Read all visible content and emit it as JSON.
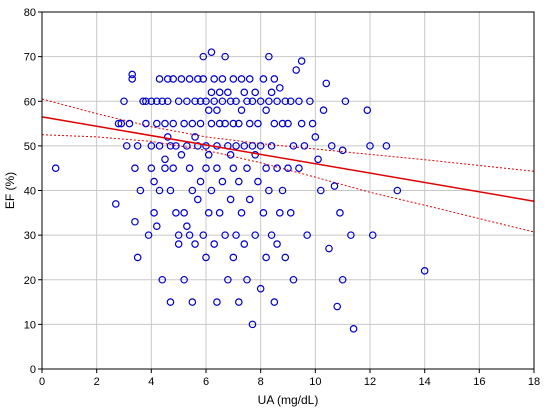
{
  "chart_data": {
    "type": "scatter",
    "xlabel": "UA (mg/dL)",
    "ylabel": "EF (%)",
    "xlim": [
      0,
      18
    ],
    "ylim": [
      0,
      80
    ],
    "xticks": [
      0,
      2,
      4,
      6,
      8,
      10,
      12,
      14,
      16,
      18
    ],
    "yticks": [
      0,
      10,
      20,
      30,
      40,
      50,
      60,
      70,
      80
    ],
    "grid": true,
    "colors": {
      "points": "#0000cc",
      "fit": "#e00000",
      "grid": "#c8c8c8"
    },
    "series": [
      {
        "values": [
          [
            0.5,
            45
          ],
          [
            2.7,
            37
          ],
          [
            2.8,
            55
          ],
          [
            2.9,
            55
          ],
          [
            3.0,
            60
          ],
          [
            3.1,
            50
          ],
          [
            3.2,
            55
          ],
          [
            3.3,
            66
          ],
          [
            3.3,
            65
          ],
          [
            3.4,
            45
          ],
          [
            3.4,
            33
          ],
          [
            3.5,
            25
          ],
          [
            3.5,
            50
          ],
          [
            3.6,
            40
          ],
          [
            3.7,
            60
          ],
          [
            3.8,
            60
          ],
          [
            3.8,
            55
          ],
          [
            3.9,
            30
          ],
          [
            4.0,
            60
          ],
          [
            4.0,
            50
          ],
          [
            4.0,
            45
          ],
          [
            4.1,
            42
          ],
          [
            4.1,
            35
          ],
          [
            4.2,
            60
          ],
          [
            4.2,
            55
          ],
          [
            4.2,
            32
          ],
          [
            4.3,
            65
          ],
          [
            4.3,
            50
          ],
          [
            4.3,
            40
          ],
          [
            4.4,
            60
          ],
          [
            4.4,
            20
          ],
          [
            4.5,
            55
          ],
          [
            4.5,
            47
          ],
          [
            4.5,
            45
          ],
          [
            4.6,
            65
          ],
          [
            4.6,
            60
          ],
          [
            4.6,
            52
          ],
          [
            4.7,
            50
          ],
          [
            4.7,
            40
          ],
          [
            4.7,
            15
          ],
          [
            4.8,
            65
          ],
          [
            4.8,
            55
          ],
          [
            4.8,
            45
          ],
          [
            4.9,
            50
          ],
          [
            4.9,
            35
          ],
          [
            5.0,
            60
          ],
          [
            5.0,
            30
          ],
          [
            5.0,
            28
          ],
          [
            5.1,
            65
          ],
          [
            5.1,
            48
          ],
          [
            5.2,
            55
          ],
          [
            5.2,
            35
          ],
          [
            5.2,
            20
          ],
          [
            5.3,
            60
          ],
          [
            5.3,
            50
          ],
          [
            5.3,
            32
          ],
          [
            5.4,
            65
          ],
          [
            5.4,
            45
          ],
          [
            5.4,
            30
          ],
          [
            5.5,
            55
          ],
          [
            5.5,
            40
          ],
          [
            5.5,
            15
          ],
          [
            5.6,
            60
          ],
          [
            5.6,
            52
          ],
          [
            5.6,
            28
          ],
          [
            5.7,
            65
          ],
          [
            5.7,
            50
          ],
          [
            5.7,
            38
          ],
          [
            5.8,
            60
          ],
          [
            5.8,
            55
          ],
          [
            5.8,
            42
          ],
          [
            5.9,
            70
          ],
          [
            5.9,
            65
          ],
          [
            5.9,
            30
          ],
          [
            6.0,
            60
          ],
          [
            6.0,
            50
          ],
          [
            6.0,
            45
          ],
          [
            6.0,
            25
          ],
          [
            6.1,
            58
          ],
          [
            6.1,
            48
          ],
          [
            6.1,
            35
          ],
          [
            6.2,
            71
          ],
          [
            6.2,
            62
          ],
          [
            6.2,
            55
          ],
          [
            6.2,
            40
          ],
          [
            6.3,
            65
          ],
          [
            6.3,
            60
          ],
          [
            6.3,
            28
          ],
          [
            6.4,
            58
          ],
          [
            6.4,
            50
          ],
          [
            6.4,
            45
          ],
          [
            6.4,
            15
          ],
          [
            6.5,
            62
          ],
          [
            6.5,
            55
          ],
          [
            6.5,
            35
          ],
          [
            6.6,
            65
          ],
          [
            6.6,
            60
          ],
          [
            6.6,
            42
          ],
          [
            6.7,
            70
          ],
          [
            6.7,
            55
          ],
          [
            6.7,
            30
          ],
          [
            6.8,
            62
          ],
          [
            6.8,
            50
          ],
          [
            6.8,
            20
          ],
          [
            6.9,
            60
          ],
          [
            6.9,
            48
          ],
          [
            6.9,
            38
          ],
          [
            7.0,
            65
          ],
          [
            7.0,
            55
          ],
          [
            7.0,
            45
          ],
          [
            7.0,
            25
          ],
          [
            7.1,
            60
          ],
          [
            7.1,
            50
          ],
          [
            7.1,
            30
          ],
          [
            7.2,
            55
          ],
          [
            7.2,
            42
          ],
          [
            7.2,
            15
          ],
          [
            7.3,
            65
          ],
          [
            7.3,
            58
          ],
          [
            7.3,
            35
          ],
          [
            7.4,
            62
          ],
          [
            7.4,
            50
          ],
          [
            7.4,
            28
          ],
          [
            7.5,
            60
          ],
          [
            7.5,
            45
          ],
          [
            7.5,
            20
          ],
          [
            7.6,
            65
          ],
          [
            7.6,
            55
          ],
          [
            7.6,
            38
          ],
          [
            7.7,
            60
          ],
          [
            7.7,
            50
          ],
          [
            7.7,
            10
          ],
          [
            7.8,
            62
          ],
          [
            7.8,
            48
          ],
          [
            7.8,
            30
          ],
          [
            7.9,
            55
          ],
          [
            7.9,
            42
          ],
          [
            8.0,
            60
          ],
          [
            8.0,
            50
          ],
          [
            8.0,
            18
          ],
          [
            8.1,
            65
          ],
          [
            8.1,
            35
          ],
          [
            8.2,
            58
          ],
          [
            8.2,
            45
          ],
          [
            8.2,
            25
          ],
          [
            8.3,
            70
          ],
          [
            8.3,
            60
          ],
          [
            8.3,
            40
          ],
          [
            8.4,
            62
          ],
          [
            8.4,
            50
          ],
          [
            8.4,
            30
          ],
          [
            8.5,
            65
          ],
          [
            8.5,
            55
          ],
          [
            8.5,
            15
          ],
          [
            8.6,
            60
          ],
          [
            8.6,
            45
          ],
          [
            8.6,
            28
          ],
          [
            8.7,
            63
          ],
          [
            8.7,
            35
          ],
          [
            8.8,
            55
          ],
          [
            8.8,
            40
          ],
          [
            8.9,
            60
          ],
          [
            8.9,
            25
          ],
          [
            9.0,
            55
          ],
          [
            9.0,
            45
          ],
          [
            9.1,
            60
          ],
          [
            9.1,
            35
          ],
          [
            9.2,
            50
          ],
          [
            9.2,
            20
          ],
          [
            9.3,
            67
          ],
          [
            9.4,
            60
          ],
          [
            9.4,
            45
          ],
          [
            9.5,
            69
          ],
          [
            9.5,
            55
          ],
          [
            9.6,
            50
          ],
          [
            9.7,
            30
          ],
          [
            9.8,
            60
          ],
          [
            9.9,
            55
          ],
          [
            10.0,
            52
          ],
          [
            10.1,
            47
          ],
          [
            10.2,
            40
          ],
          [
            10.3,
            58
          ],
          [
            10.4,
            64
          ],
          [
            10.5,
            27
          ],
          [
            10.6,
            50
          ],
          [
            10.7,
            41
          ],
          [
            10.8,
            14
          ],
          [
            10.9,
            35
          ],
          [
            11.0,
            49
          ],
          [
            11.0,
            20
          ],
          [
            11.1,
            60
          ],
          [
            11.3,
            30
          ],
          [
            11.4,
            9
          ],
          [
            11.9,
            58
          ],
          [
            12.0,
            50
          ],
          [
            12.1,
            30
          ],
          [
            12.6,
            50
          ],
          [
            13.0,
            40
          ],
          [
            14.0,
            22
          ]
        ]
      }
    ],
    "fit_line": {
      "x": [
        0,
        18
      ],
      "y": [
        56.5,
        37.6
      ]
    },
    "confidence_band": {
      "x": [
        0,
        2,
        4,
        6,
        8,
        10,
        12,
        14,
        16,
        18
      ],
      "upper": [
        60.5,
        57.2,
        54.3,
        52.0,
        50.5,
        49.3,
        48.1,
        46.9,
        45.6,
        44.3
      ],
      "lower": [
        52.5,
        52.0,
        51.0,
        49.0,
        46.2,
        43.0,
        39.6,
        36.7,
        33.7,
        30.7
      ]
    }
  }
}
